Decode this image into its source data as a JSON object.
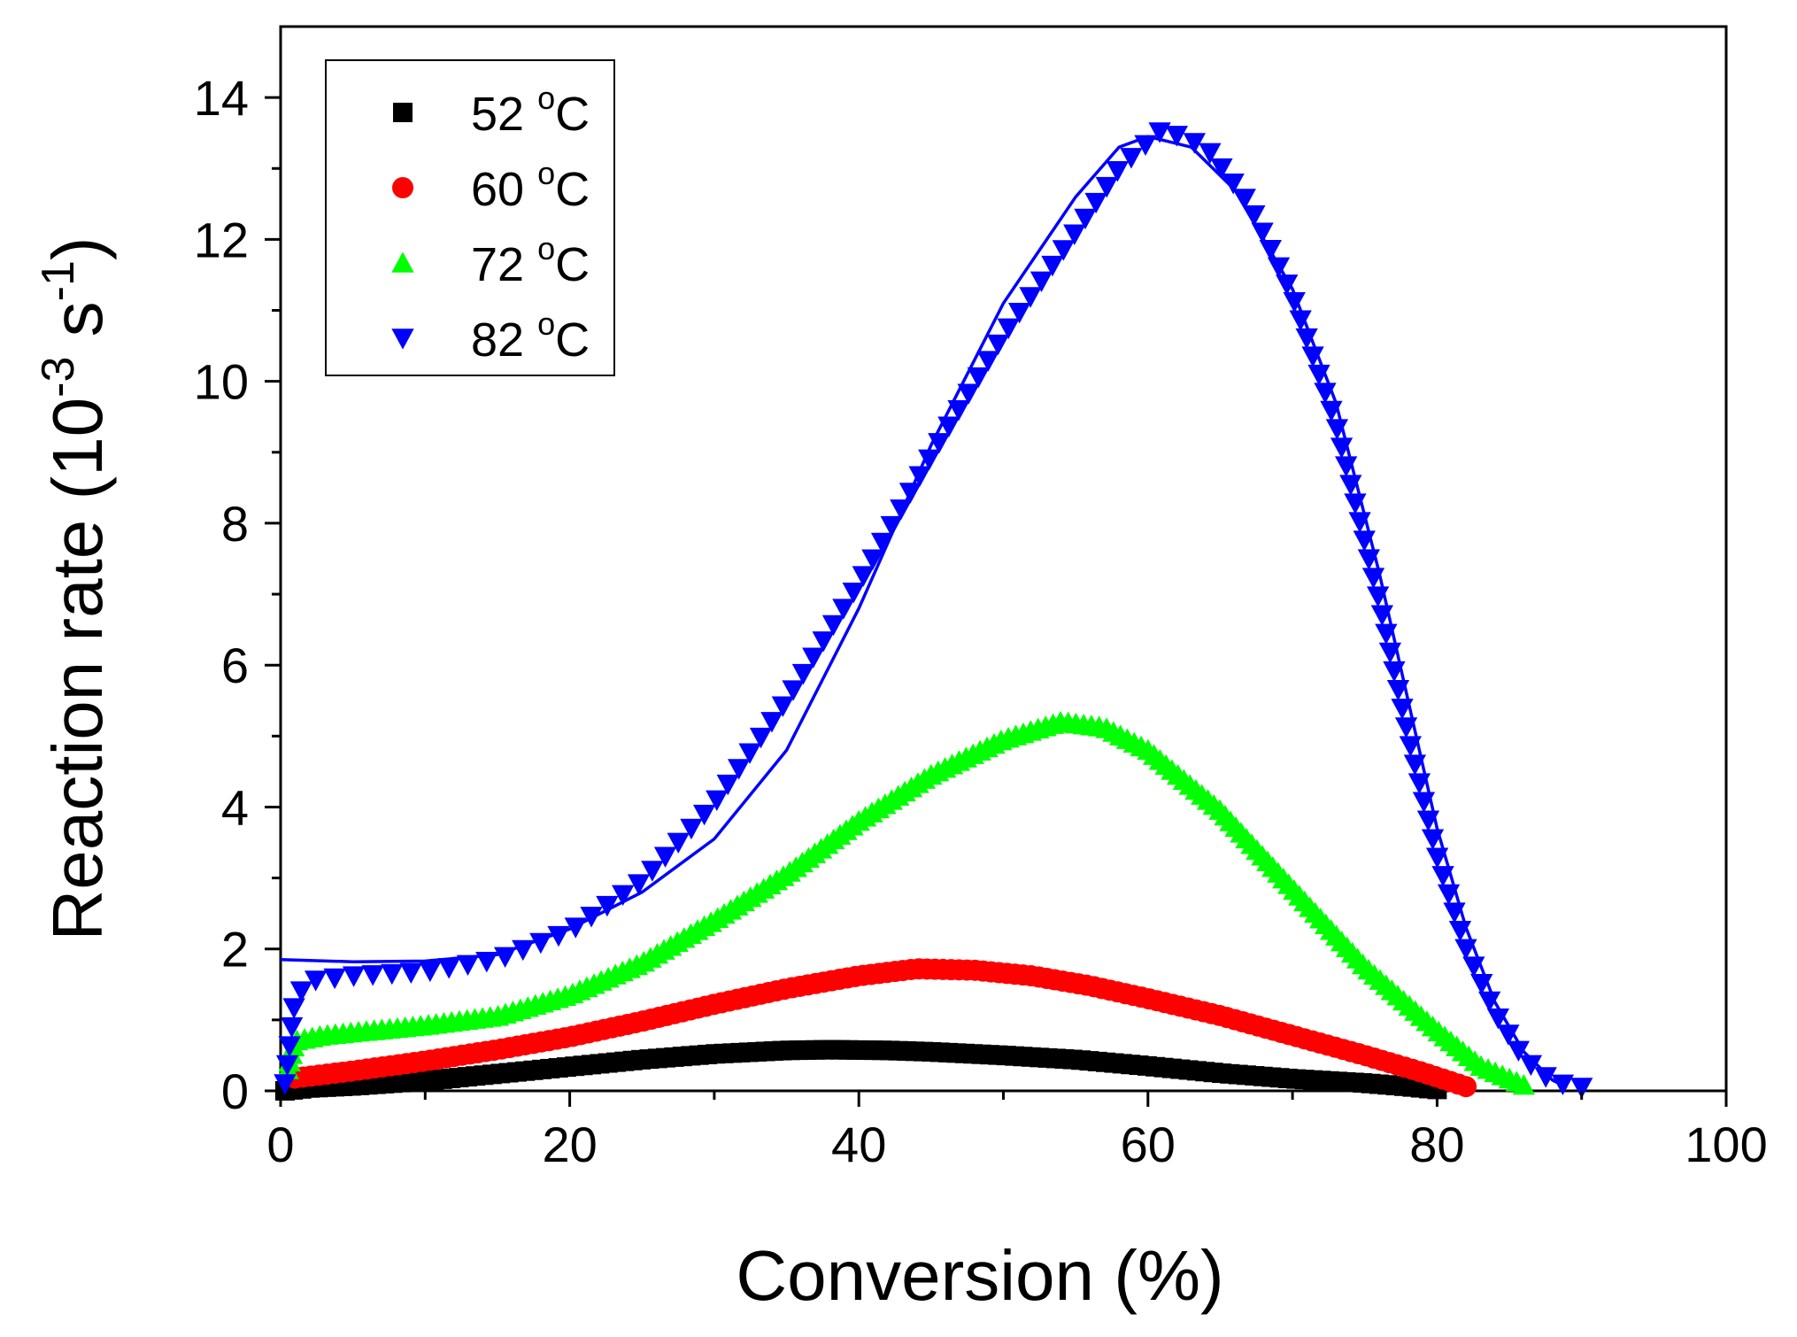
{
  "chart_data": {
    "type": "scatter",
    "xlabel": "Conversion (%)",
    "ylabel_base": "Reaction rate (10",
    "ylabel_exp1": "-3",
    "ylabel_mid": " s",
    "ylabel_exp2": "-1",
    "ylabel_end": ")",
    "xlim": [
      0,
      100
    ],
    "ylim": [
      0,
      15
    ],
    "xticks": [
      0,
      20,
      40,
      60,
      80,
      100
    ],
    "yticks": [
      0,
      2,
      4,
      6,
      8,
      10,
      12,
      14
    ],
    "x_minor_step": 10,
    "y_minor_step": 1,
    "grid": false,
    "legend_position": "top-left",
    "series": [
      {
        "name": "52 °C",
        "label_value": "52",
        "label_unit": "C",
        "color": "#000000",
        "marker": "square",
        "marker_count": 140,
        "points": [
          [
            0.3,
            0
          ],
          [
            2,
            0.04
          ],
          [
            5,
            0.07
          ],
          [
            10,
            0.14
          ],
          [
            15,
            0.24
          ],
          [
            20,
            0.34
          ],
          [
            25,
            0.44
          ],
          [
            30,
            0.52
          ],
          [
            35,
            0.57
          ],
          [
            38,
            0.58
          ],
          [
            42,
            0.57
          ],
          [
            45,
            0.55
          ],
          [
            50,
            0.5
          ],
          [
            55,
            0.44
          ],
          [
            60,
            0.35
          ],
          [
            65,
            0.25
          ],
          [
            70,
            0.17
          ],
          [
            75,
            0.11
          ],
          [
            78,
            0.06
          ],
          [
            80,
            0.02
          ]
        ],
        "fit": [
          [
            1,
            0.03
          ],
          [
            5,
            0.06
          ],
          [
            10,
            0.13
          ],
          [
            15,
            0.23
          ],
          [
            20,
            0.33
          ],
          [
            25,
            0.43
          ],
          [
            30,
            0.51
          ],
          [
            35,
            0.56
          ],
          [
            38,
            0.57
          ],
          [
            42,
            0.56
          ],
          [
            45,
            0.54
          ],
          [
            50,
            0.49
          ],
          [
            55,
            0.43
          ],
          [
            60,
            0.34
          ],
          [
            65,
            0.24
          ],
          [
            70,
            0.16
          ],
          [
            75,
            0.1
          ],
          [
            78,
            0.05
          ],
          [
            80,
            0.01
          ]
        ]
      },
      {
        "name": "60 °C",
        "label_value": "60",
        "label_unit": "C",
        "color": "#ff0000",
        "marker": "circle",
        "marker_count": 150,
        "points": [
          [
            1,
            0.18
          ],
          [
            5,
            0.28
          ],
          [
            10,
            0.42
          ],
          [
            15,
            0.58
          ],
          [
            20,
            0.76
          ],
          [
            25,
            0.98
          ],
          [
            30,
            1.22
          ],
          [
            35,
            1.44
          ],
          [
            40,
            1.62
          ],
          [
            44,
            1.72
          ],
          [
            48,
            1.7
          ],
          [
            52,
            1.62
          ],
          [
            56,
            1.48
          ],
          [
            60,
            1.3
          ],
          [
            65,
            1.06
          ],
          [
            70,
            0.78
          ],
          [
            75,
            0.5
          ],
          [
            79,
            0.26
          ],
          [
            82,
            0.06
          ]
        ],
        "fit": [
          [
            1,
            0.16
          ],
          [
            5,
            0.26
          ],
          [
            10,
            0.4
          ],
          [
            15,
            0.56
          ],
          [
            20,
            0.73
          ],
          [
            25,
            0.95
          ],
          [
            30,
            1.18
          ],
          [
            35,
            1.4
          ],
          [
            40,
            1.56
          ],
          [
            44,
            1.64
          ],
          [
            48,
            1.66
          ],
          [
            52,
            1.6
          ],
          [
            56,
            1.47
          ],
          [
            60,
            1.29
          ],
          [
            65,
            1.05
          ],
          [
            70,
            0.77
          ],
          [
            75,
            0.49
          ],
          [
            79,
            0.25
          ],
          [
            82,
            0.05
          ]
        ]
      },
      {
        "name": "72 °C",
        "label_value": "72",
        "label_unit": "C",
        "color": "#00ff00",
        "marker": "triangle-up",
        "marker_count": 190,
        "points": [
          [
            0.5,
            0.3
          ],
          [
            1,
            0.7
          ],
          [
            3,
            0.78
          ],
          [
            10,
            0.92
          ],
          [
            15,
            1.05
          ],
          [
            20,
            1.35
          ],
          [
            25,
            1.8
          ],
          [
            30,
            2.4
          ],
          [
            35,
            3.05
          ],
          [
            40,
            3.8
          ],
          [
            45,
            4.45
          ],
          [
            50,
            4.95
          ],
          [
            54,
            5.2
          ],
          [
            57,
            5.12
          ],
          [
            60,
            4.8
          ],
          [
            65,
            3.95
          ],
          [
            70,
            2.85
          ],
          [
            75,
            1.75
          ],
          [
            80,
            0.85
          ],
          [
            83,
            0.35
          ],
          [
            86,
            0.08
          ]
        ],
        "fit": [
          [
            1,
            0.72
          ],
          [
            3,
            0.77
          ],
          [
            10,
            0.9
          ],
          [
            15,
            1.03
          ],
          [
            20,
            1.33
          ],
          [
            25,
            1.78
          ],
          [
            30,
            2.37
          ],
          [
            35,
            3.02
          ],
          [
            40,
            3.76
          ],
          [
            45,
            4.4
          ],
          [
            50,
            4.9
          ],
          [
            54,
            5.15
          ],
          [
            57,
            5.08
          ],
          [
            60,
            4.78
          ],
          [
            65,
            3.93
          ],
          [
            70,
            2.83
          ],
          [
            75,
            1.73
          ],
          [
            80,
            0.83
          ],
          [
            83,
            0.33
          ],
          [
            86,
            0.06
          ]
        ]
      },
      {
        "name": "82 °C",
        "label_value": "82",
        "label_unit": "C",
        "color": "#0000ff",
        "marker": "triangle-down",
        "marker_count": 130,
        "points": [
          [
            0.3,
            0.1
          ],
          [
            0.6,
            0.6
          ],
          [
            1,
            1.3
          ],
          [
            2,
            1.55
          ],
          [
            5,
            1.62
          ],
          [
            10,
            1.68
          ],
          [
            15,
            1.85
          ],
          [
            20,
            2.25
          ],
          [
            25,
            2.95
          ],
          [
            30,
            4.05
          ],
          [
            35,
            5.5
          ],
          [
            40,
            7.15
          ],
          [
            45,
            8.95
          ],
          [
            50,
            10.65
          ],
          [
            55,
            12.1
          ],
          [
            58,
            13.0
          ],
          [
            61,
            13.55
          ],
          [
            64,
            13.3
          ],
          [
            67,
            12.5
          ],
          [
            70,
            11.2
          ],
          [
            73,
            9.4
          ],
          [
            76,
            6.9
          ],
          [
            78,
            5.0
          ],
          [
            80,
            3.3
          ],
          [
            82,
            2.0
          ],
          [
            84,
            1.1
          ],
          [
            86,
            0.45
          ],
          [
            88,
            0.12
          ],
          [
            90,
            0.05
          ]
        ],
        "fit": [
          [
            0,
            1.85
          ],
          [
            5,
            1.82
          ],
          [
            10,
            1.83
          ],
          [
            15,
            1.92
          ],
          [
            20,
            2.28
          ],
          [
            25,
            2.8
          ],
          [
            30,
            3.55
          ],
          [
            35,
            4.8
          ],
          [
            40,
            6.8
          ],
          [
            45,
            9.1
          ],
          [
            50,
            11.1
          ],
          [
            55,
            12.6
          ],
          [
            58,
            13.3
          ],
          [
            60,
            13.45
          ],
          [
            63,
            13.3
          ],
          [
            66,
            12.7
          ],
          [
            70,
            11.3
          ],
          [
            73,
            9.7
          ],
          [
            76,
            7.3
          ],
          [
            78,
            5.5
          ],
          [
            80,
            3.7
          ],
          [
            82,
            2.3
          ],
          [
            84,
            1.25
          ],
          [
            86,
            0.55
          ],
          [
            88,
            0.15
          ],
          [
            89,
            0.05
          ]
        ]
      }
    ]
  }
}
